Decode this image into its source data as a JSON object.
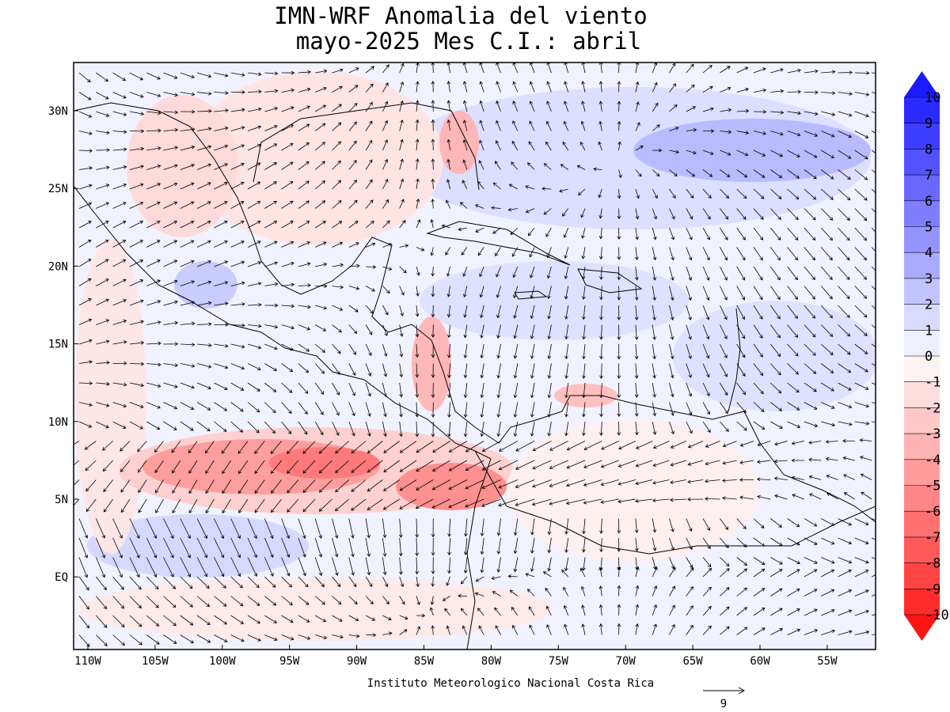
{
  "map": {
    "title": "IMN-WRF Anomalia del viento",
    "subtitle": "mayo-2025 Mes C.I.: abril",
    "lat_labels": [
      "30N",
      "25N",
      "20N",
      "15N",
      "10N",
      "5N",
      "EQ"
    ],
    "lon_labels": [
      "110W",
      "105W",
      "100W",
      "95W",
      "90W",
      "85W",
      "80W",
      "75W",
      "70W",
      "65W",
      "60W",
      "55W"
    ],
    "footer": "Instituto Meteorologico Nacional Costa Rica",
    "vector_scale": 9,
    "colorbar": {
      "ticks": [
        10,
        9,
        8,
        7,
        6,
        5,
        4,
        3,
        2,
        1,
        0,
        -1,
        -2,
        -3,
        -4,
        -5,
        -6,
        -7,
        -8,
        -9,
        -10
      ],
      "colors": [
        "#1a1aff",
        "#2a2aff",
        "#3e3eff",
        "#5252ff",
        "#6868ff",
        "#7e7eff",
        "#9494ff",
        "#aaaaff",
        "#c2c4ff",
        "#d8dbff",
        "#eef0ff",
        "#fff2f2",
        "#ffdede",
        "#ffc8c8",
        "#ffb2b2",
        "#ff9c9c",
        "#ff8686",
        "#ff7070",
        "#ff5a5a",
        "#ff4444",
        "#ff2c2c",
        "#ff1414"
      ]
    }
  }
}
